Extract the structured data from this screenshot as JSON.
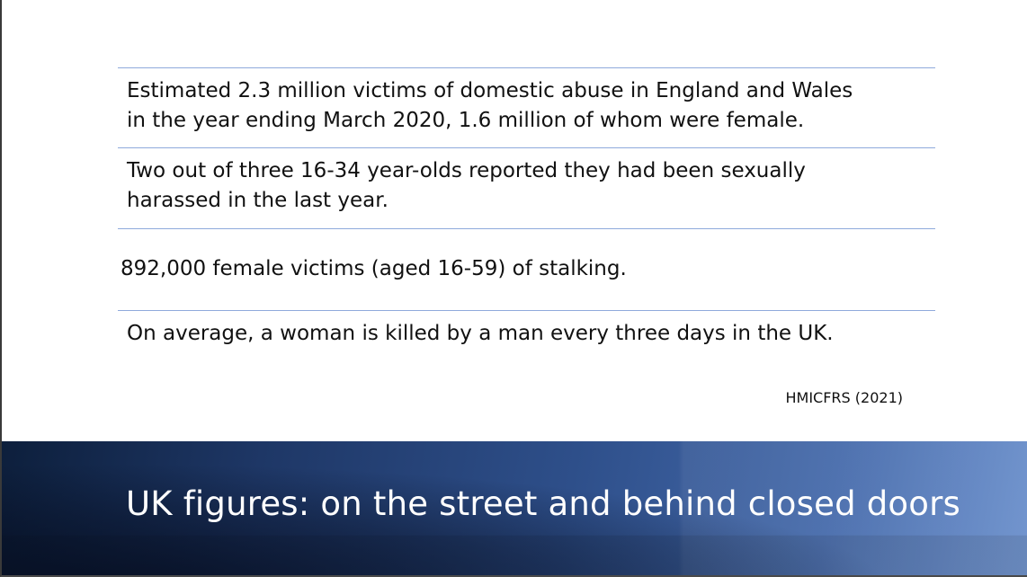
{
  "slide": {
    "facts": [
      {
        "lines": [
          "Estimated 2.3 million victims of domestic abuse in England and Wales",
          "in the year ending March 2020, 1.6 million of whom were female."
        ]
      },
      {
        "lines": [
          "Two out of three 16-34 year-olds reported they had been sexually",
          "harassed in the last year."
        ]
      },
      {
        "lines": [
          "892,000 female victims (aged 16-59) of stalking."
        ]
      },
      {
        "lines": [
          "On average, a woman is killed by a man every three days in the UK."
        ]
      }
    ],
    "source": "HMICFRS (2021)",
    "title": "UK figures: on the street and behind closed doors"
  },
  "colors": {
    "rule": "#8faadc",
    "banner_dark": "#0d1f3c",
    "banner_light": "#6a8fcc",
    "text": "#111111"
  }
}
